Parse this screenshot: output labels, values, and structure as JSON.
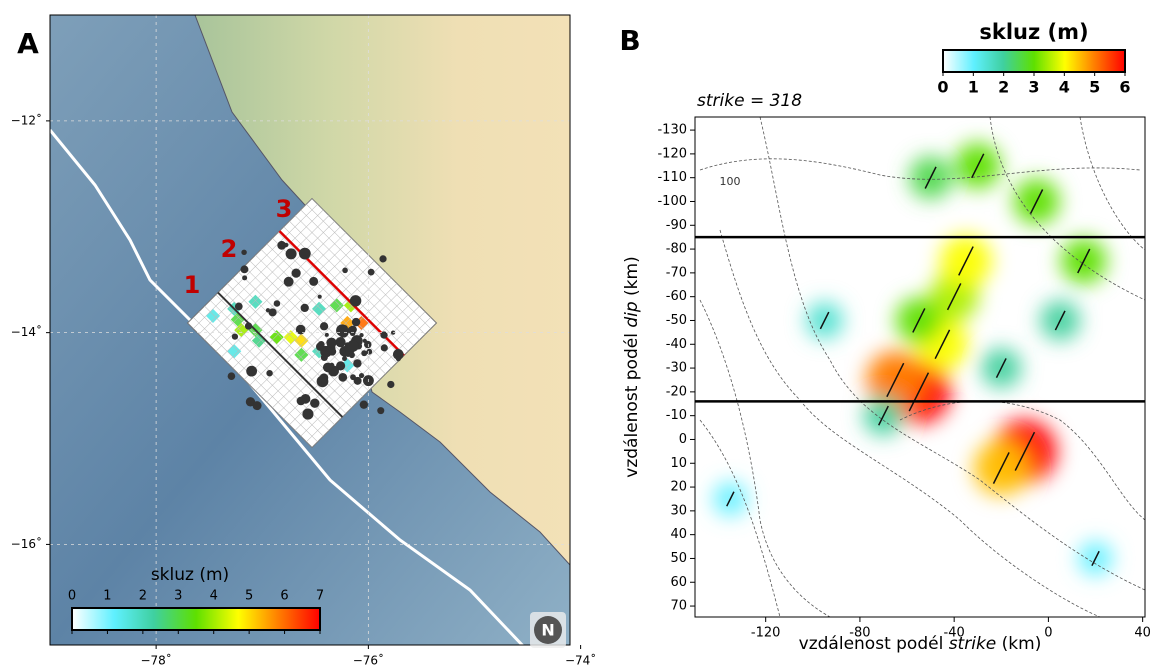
{
  "chart_data": [
    {
      "type": "map",
      "label": "A",
      "xlim": [
        -79,
        -74.1
      ],
      "ylim": [
        -11,
        -16.95
      ],
      "xticks": [
        {
          "value": -78,
          "label": "−78˚"
        },
        {
          "value": -76,
          "label": "−76˚"
        },
        {
          "value": -74,
          "label": "−74˚"
        }
      ],
      "yticks": [
        {
          "value": -12,
          "label": "−12˚"
        },
        {
          "value": -14,
          "label": "−14˚"
        },
        {
          "value": -16,
          "label": "−16˚"
        }
      ],
      "grid": true,
      "line_labels": [
        "1",
        "2",
        "3"
      ],
      "colorbar": {
        "title": "skluz (m)",
        "clim": [
          0,
          7
        ],
        "ticks": [
          0,
          1,
          2,
          3,
          4,
          5,
          6,
          7
        ]
      }
    },
    {
      "type": "heatmap",
      "label": "B",
      "subtitle": "strike = 318",
      "xlabel": [
        "vzdálenost podél ",
        "strike",
        " (km)"
      ],
      "ylabel": [
        "vzdálenost podél ",
        "dip",
        " (km)"
      ],
      "xlim": [
        -150,
        41
      ],
      "ylim": [
        -135.5,
        74.6
      ],
      "xticks": [
        -120,
        -80,
        -40,
        0,
        40
      ],
      "yticks": [
        -130,
        -120,
        -110,
        -100,
        -90,
        -80,
        -70,
        -60,
        -50,
        -40,
        -30,
        -20,
        -10,
        0,
        10,
        20,
        30,
        40,
        50,
        60,
        70
      ],
      "hlines": [
        -85,
        -16
      ],
      "contour_labels": [
        "100"
      ],
      "x": [
        -55,
        -65,
        -45,
        -40,
        -35,
        -10,
        -20,
        -5,
        15,
        -50,
        -30,
        -55,
        -70,
        5,
        -95,
        -20,
        20,
        -135
      ],
      "y": [
        -20,
        -25,
        -40,
        -60,
        -75,
        5,
        12,
        -100,
        -75,
        -110,
        -115,
        -50,
        -10,
        -50,
        -50,
        -30,
        50,
        25
      ],
      "values": [
        6,
        5,
        4,
        3.5,
        4,
        6,
        4.5,
        3,
        3,
        2.5,
        3,
        3,
        2,
        2,
        1.5,
        2,
        1,
        1
      ],
      "colorbar": {
        "title": "skluz (m)",
        "clim": [
          0,
          6
        ],
        "ticks": [
          0,
          1,
          2,
          3,
          4,
          5,
          6
        ]
      }
    }
  ]
}
